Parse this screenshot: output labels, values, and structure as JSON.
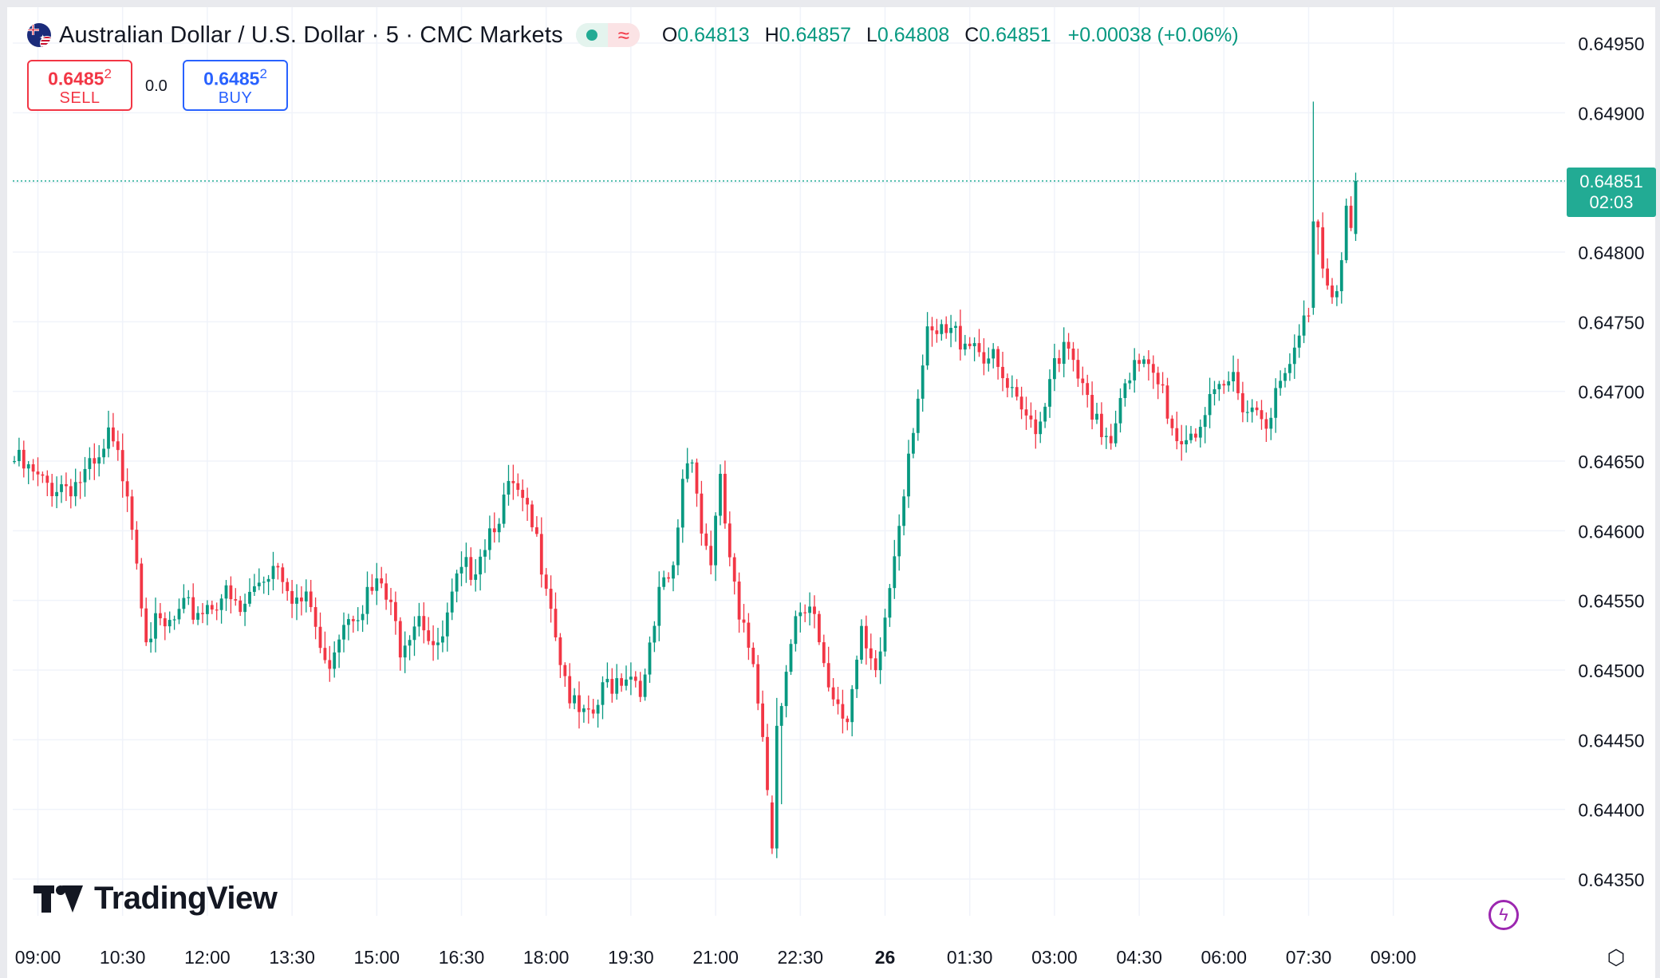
{
  "header": {
    "symbol_title": "Australian Dollar / U.S. Dollar · 5 · CMC Markets",
    "ohlc": {
      "o_label": "O",
      "o_value": "0.64813",
      "h_label": "H",
      "h_value": "0.64857",
      "l_label": "L",
      "l_value": "0.64808",
      "c_label": "C",
      "c_value": "0.64851",
      "change": "+0.00038 (+0.06%)"
    }
  },
  "trade": {
    "sell_price": "0.6485",
    "sell_price_sup": "2",
    "sell_label": "SELL",
    "spread": "0.0",
    "buy_price": "0.6485",
    "buy_price_sup": "2",
    "buy_label": "BUY"
  },
  "price_tag": {
    "price": "0.64851",
    "countdown": "02:03"
  },
  "logo_text": "TradingView",
  "icons": {
    "flag": "aud-usd-flag-icon",
    "lightning": "lightning-icon",
    "settings": "settings-icon"
  },
  "colors": {
    "up": "#089981",
    "down": "#f23645",
    "grid": "#f0f3fa",
    "tag": "#22ab94",
    "sell": "#f23645",
    "buy": "#2962ff"
  },
  "chart_data": {
    "type": "candlestick",
    "title": "",
    "xlabel": "",
    "ylabel": "",
    "ylim": [
      0.64325,
      0.64975
    ],
    "y_ticks": [
      "0.64950",
      "0.64900",
      "0.64850",
      "0.64800",
      "0.64750",
      "0.64700",
      "0.64650",
      "0.64600",
      "0.64550",
      "0.64500",
      "0.64450",
      "0.64400",
      "0.64350"
    ],
    "x_ticks": [
      "09:00",
      "10:30",
      "12:00",
      "13:30",
      "15:00",
      "16:30",
      "18:00",
      "19:30",
      "21:00",
      "22:30",
      "26",
      "01:30",
      "03:00",
      "04:30",
      "06:00",
      "07:30",
      "09:00"
    ],
    "x_tick_index": [
      5,
      23,
      41,
      59,
      77,
      95,
      113,
      131,
      149,
      167,
      185,
      203,
      221,
      239,
      257,
      275,
      293
    ],
    "bold_ticks": [
      "26"
    ],
    "last_price": 0.64851,
    "grid": true,
    "anchors": [
      [
        0,
        0.6465
      ],
      [
        6,
        0.64632
      ],
      [
        13,
        0.64635
      ],
      [
        18,
        0.64645
      ],
      [
        20,
        0.64665
      ],
      [
        24,
        0.64635
      ],
      [
        28,
        0.6453
      ],
      [
        32,
        0.64528
      ],
      [
        36,
        0.6454
      ],
      [
        40,
        0.64545
      ],
      [
        44,
        0.64555
      ],
      [
        48,
        0.6454
      ],
      [
        52,
        0.64565
      ],
      [
        56,
        0.6458
      ],
      [
        60,
        0.6455
      ],
      [
        63,
        0.64545
      ],
      [
        66,
        0.645
      ],
      [
        70,
        0.6454
      ],
      [
        74,
        0.6455
      ],
      [
        78,
        0.6456
      ],
      [
        82,
        0.6452
      ],
      [
        86,
        0.64545
      ],
      [
        90,
        0.6451
      ],
      [
        94,
        0.6456
      ],
      [
        98,
        0.6458
      ],
      [
        102,
        0.6461
      ],
      [
        106,
        0.6463
      ],
      [
        110,
        0.646
      ],
      [
        113,
        0.6457
      ],
      [
        116,
        0.6451
      ],
      [
        119,
        0.6447
      ],
      [
        122,
        0.6446
      ],
      [
        126,
        0.6449
      ],
      [
        130,
        0.645
      ],
      [
        134,
        0.6449
      ],
      [
        137,
        0.6455
      ],
      [
        140,
        0.6457
      ],
      [
        142,
        0.6464
      ],
      [
        144,
        0.6466
      ],
      [
        146,
        0.646
      ],
      [
        148,
        0.6458
      ],
      [
        150,
        0.6463
      ],
      [
        152,
        0.6458
      ],
      [
        154,
        0.6453
      ],
      [
        157,
        0.6451
      ],
      [
        159,
        0.6446
      ],
      [
        161,
        0.6437
      ],
      [
        163,
        0.6448
      ],
      [
        166,
        0.6453
      ],
      [
        170,
        0.6454
      ],
      [
        173,
        0.6449
      ],
      [
        177,
        0.6447
      ],
      [
        180,
        0.6452
      ],
      [
        183,
        0.6449
      ],
      [
        186,
        0.6456
      ],
      [
        188,
        0.6461
      ],
      [
        190,
        0.6466
      ],
      [
        192,
        0.647
      ],
      [
        194,
        0.64735
      ],
      [
        198,
        0.6474
      ],
      [
        203,
        0.6474
      ],
      [
        207,
        0.64725
      ],
      [
        211,
        0.647
      ],
      [
        214,
        0.6468
      ],
      [
        218,
        0.6468
      ],
      [
        221,
        0.6473
      ],
      [
        224,
        0.64725
      ],
      [
        227,
        0.647
      ],
      [
        229,
        0.64675
      ],
      [
        233,
        0.6467
      ],
      [
        236,
        0.64715
      ],
      [
        240,
        0.64715
      ],
      [
        244,
        0.647
      ],
      [
        247,
        0.64665
      ],
      [
        251,
        0.64675
      ],
      [
        255,
        0.6469
      ],
      [
        259,
        0.6471
      ],
      [
        262,
        0.6469
      ],
      [
        266,
        0.64685
      ],
      [
        269,
        0.647
      ],
      [
        272,
        0.64725
      ],
      [
        275,
        0.6476
      ],
      [
        276,
        0.6481
      ],
      [
        277,
        0.6482
      ],
      [
        278,
        0.64795
      ],
      [
        280,
        0.64775
      ],
      [
        282,
        0.6479
      ],
      [
        283,
        0.6483
      ],
      [
        284,
        0.64813
      ],
      [
        285,
        0.64851
      ]
    ],
    "special_candles": [
      {
        "i": 161,
        "open": 0.64405,
        "high": 0.6441,
        "low": 0.64368,
        "close": 0.64372
      },
      {
        "i": 162,
        "open": 0.64372,
        "high": 0.6448,
        "low": 0.64365,
        "close": 0.6446
      },
      {
        "i": 276,
        "open": 0.6476,
        "high": 0.64908,
        "low": 0.64755,
        "close": 0.64822
      },
      {
        "i": 285,
        "open": 0.64813,
        "high": 0.64857,
        "low": 0.64808,
        "close": 0.64851
      }
    ]
  }
}
